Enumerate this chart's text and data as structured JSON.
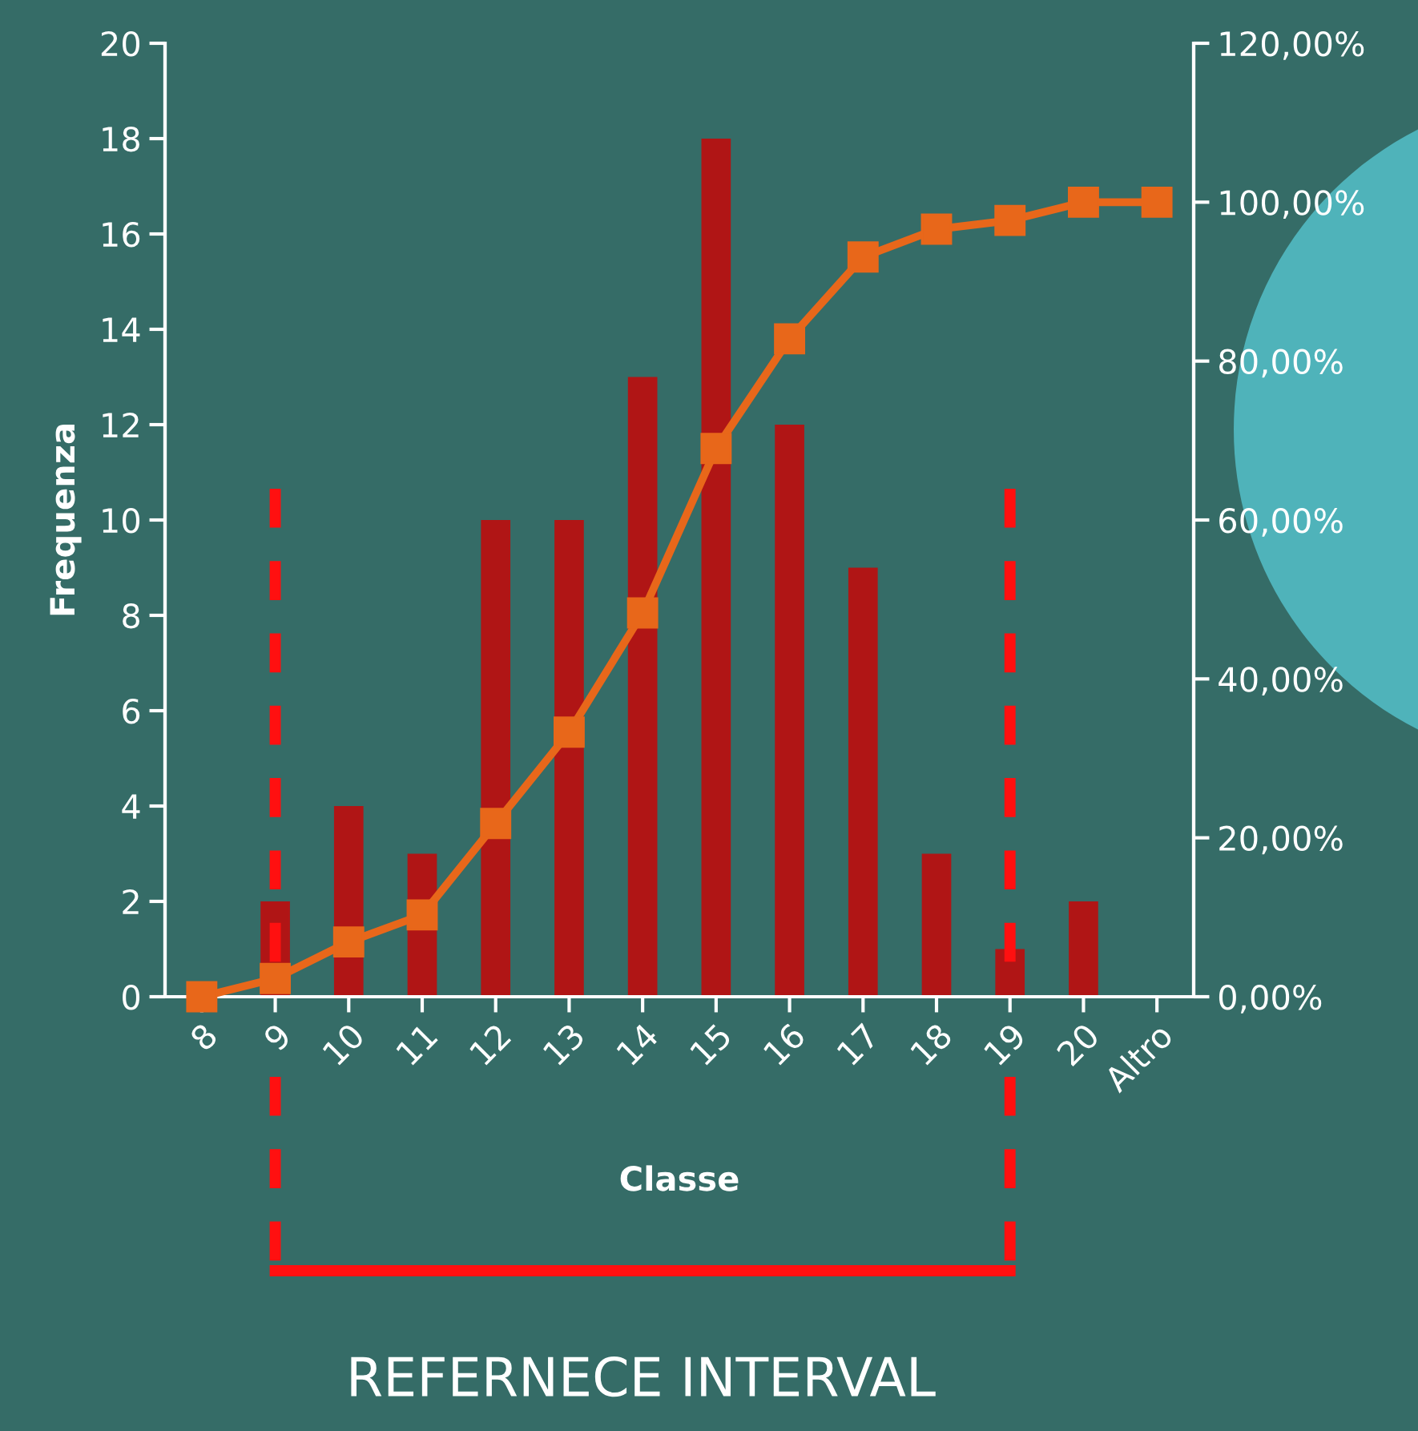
{
  "chart_data": {
    "type": "bar",
    "xlabel": "Classe",
    "ylabel": "Frequenza",
    "categories": [
      "8",
      "9",
      "10",
      "11",
      "12",
      "13",
      "14",
      "15",
      "16",
      "17",
      "18",
      "19",
      "20",
      "Altro"
    ],
    "series": [
      {
        "color": "#b01515",
        "values": [
          0,
          2,
          4,
          3,
          10,
          10,
          13,
          18,
          12,
          9,
          3,
          1,
          2,
          0
        ]
      },
      {
        "type": "line",
        "axis": "y2",
        "color": "#e8671a",
        "marker": "square",
        "values": [
          0,
          2.3,
          6.9,
          10.3,
          21.8,
          33.3,
          48.3,
          69.0,
          82.8,
          93.1,
          96.6,
          97.7,
          100,
          100
        ]
      }
    ],
    "ylim": [
      0,
      20
    ],
    "yticks": [
      0,
      2,
      4,
      6,
      8,
      10,
      12,
      14,
      16,
      18,
      20
    ],
    "y2lim": [
      0,
      120
    ],
    "y2ticks": [
      {
        "value": 0,
        "label": "0,00%"
      },
      {
        "value": 20,
        "label": "20,00%"
      },
      {
        "value": 40,
        "label": "40,00%"
      },
      {
        "value": 60,
        "label": "60,00%"
      },
      {
        "value": 80,
        "label": "80,00%"
      },
      {
        "value": 100,
        "label": "100,00%"
      },
      {
        "value": 120,
        "label": "120,00%"
      }
    ],
    "ref_lines": [
      {
        "axis": "x",
        "value": "9",
        "color": "#ff1010",
        "line_style": "dashed"
      },
      {
        "axis": "x",
        "value": "19",
        "color": "#ff1010",
        "line_style": "dashed"
      }
    ],
    "annotations": [
      "REFERNECE INTERVAL"
    ],
    "grid": false,
    "legend": false
  }
}
